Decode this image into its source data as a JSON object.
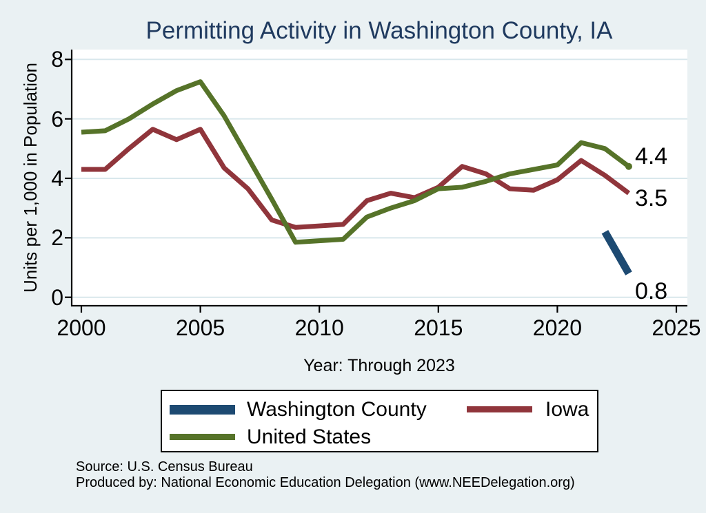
{
  "title": "Permitting Activity in Washington County, IA",
  "y_axis_title": "Units per 1,000 in Population",
  "x_axis_title": "Year: Through 2023",
  "legend": {
    "items": [
      {
        "label": "Washington County",
        "color": "#1d4a72"
      },
      {
        "label": "Iowa",
        "color": "#90353b"
      },
      {
        "label": "United States",
        "color": "#567329"
      }
    ]
  },
  "footer": {
    "line1": "Source: U.S. Census Bureau",
    "line2": "Produced by: National Economic Education Delegation (www.NEEDelegation.org)"
  },
  "chart_data": {
    "type": "line",
    "title": "Permitting Activity in Washington County, IA",
    "xlabel": "Year: Through 2023",
    "ylabel": "Units per 1,000 in Population",
    "x_ticks": [
      2000,
      2005,
      2010,
      2015,
      2020,
      2025
    ],
    "y_ticks": [
      0,
      2,
      4,
      6,
      8
    ],
    "xlim": [
      2000,
      2025
    ],
    "ylim": [
      0,
      8.3
    ],
    "grid": "horizontal",
    "legend_position": "below-plot",
    "background": "#eaf1f3",
    "plot_background": "#ffffff",
    "series": [
      {
        "name": "Washington County",
        "color": "#1d4a72",
        "line_width": 11,
        "years": [
          2022,
          2023
        ],
        "values": [
          2.2,
          0.8
        ],
        "end_label": "0.8",
        "end_label_dy": 26
      },
      {
        "name": "Iowa",
        "color": "#90353b",
        "line_width": 7,
        "years": [
          2000,
          2001,
          2002,
          2003,
          2004,
          2005,
          2006,
          2007,
          2008,
          2009,
          2010,
          2011,
          2012,
          2013,
          2014,
          2015,
          2016,
          2017,
          2018,
          2019,
          2020,
          2021,
          2022,
          2023
        ],
        "values": [
          4.3,
          4.3,
          5.0,
          5.65,
          5.3,
          5.65,
          4.35,
          3.65,
          2.6,
          2.35,
          2.4,
          2.45,
          3.25,
          3.5,
          3.35,
          3.7,
          4.4,
          4.15,
          3.65,
          3.6,
          3.95,
          4.6,
          4.1,
          3.5
        ],
        "end_label": "3.5",
        "end_label_dy": 7
      },
      {
        "name": "United States",
        "color": "#567329",
        "line_width": 7,
        "years": [
          2000,
          2001,
          2002,
          2003,
          2004,
          2005,
          2006,
          2007,
          2008,
          2009,
          2010,
          2011,
          2012,
          2013,
          2014,
          2015,
          2016,
          2017,
          2018,
          2019,
          2020,
          2021,
          2022,
          2023
        ],
        "values": [
          5.55,
          5.6,
          6.0,
          6.5,
          6.95,
          7.25,
          6.1,
          4.7,
          3.3,
          1.85,
          1.9,
          1.95,
          2.7,
          3.0,
          3.25,
          3.65,
          3.7,
          3.9,
          4.15,
          4.3,
          4.45,
          5.2,
          5.0,
          4.4
        ],
        "end_label": "4.4",
        "end_label_dy": -15,
        "end_dot": true
      }
    ]
  }
}
